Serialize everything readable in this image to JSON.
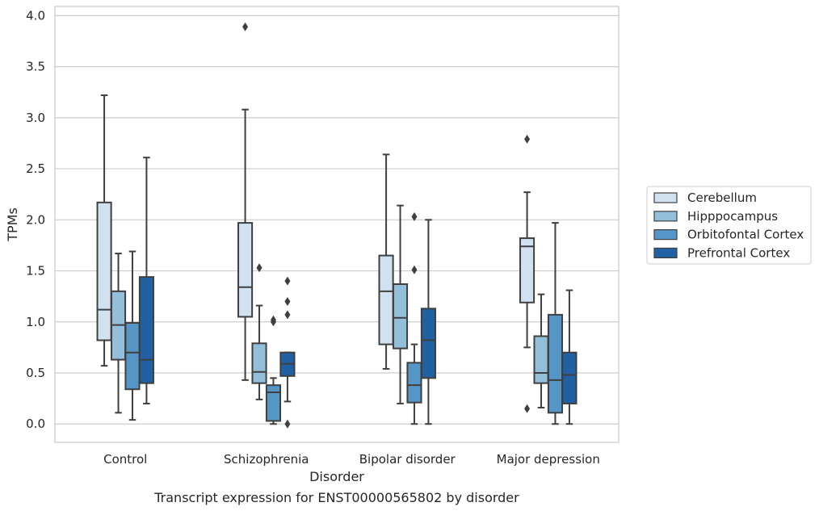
{
  "chart_data": {
    "type": "box",
    "caption": "Transcript expression for ENST00000565802 by disorder",
    "xlabel": "Disorder",
    "ylabel": "TPMs",
    "ylim": [
      -0.18,
      4.09
    ],
    "yticks": [
      "0.0",
      "0.5",
      "1.0",
      "1.5",
      "2.0",
      "2.5",
      "3.0",
      "3.5",
      "4.0"
    ],
    "categories": [
      "Control",
      "Schizophrenia",
      "Bipolar disorder",
      "Major depression"
    ],
    "grid": true,
    "legend_position": "right",
    "series": [
      {
        "name": "Cerebellum",
        "color": "#d1e1f0",
        "boxes": [
          {
            "whislo": 0.57,
            "q1": 0.82,
            "med": 1.12,
            "q3": 2.17,
            "whishi": 3.22,
            "fliers": []
          },
          {
            "whislo": 0.43,
            "q1": 1.05,
            "med": 1.34,
            "q3": 1.97,
            "whishi": 3.08,
            "fliers": [
              3.89
            ]
          },
          {
            "whislo": 0.54,
            "q1": 0.78,
            "med": 1.3,
            "q3": 1.65,
            "whishi": 2.64,
            "fliers": []
          },
          {
            "whislo": 0.75,
            "q1": 1.19,
            "med": 1.74,
            "q3": 1.82,
            "whishi": 2.27,
            "fliers": [
              2.79,
              0.15
            ]
          }
        ]
      },
      {
        "name": "Hipppocampus",
        "color": "#94bfdb",
        "boxes": [
          {
            "whislo": 0.11,
            "q1": 0.63,
            "med": 0.97,
            "q3": 1.3,
            "whishi": 1.67,
            "fliers": []
          },
          {
            "whislo": 0.24,
            "q1": 0.4,
            "med": 0.51,
            "q3": 0.79,
            "whishi": 1.16,
            "fliers": [
              1.53
            ]
          },
          {
            "whislo": 0.2,
            "q1": 0.74,
            "med": 1.04,
            "q3": 1.37,
            "whishi": 2.14,
            "fliers": []
          },
          {
            "whislo": 0.16,
            "q1": 0.4,
            "med": 0.5,
            "q3": 0.86,
            "whishi": 1.27,
            "fliers": []
          }
        ]
      },
      {
        "name": "Orbitofontal Cortex",
        "color": "#5696c7",
        "boxes": [
          {
            "whislo": 0.04,
            "q1": 0.34,
            "med": 0.7,
            "q3": 0.99,
            "whishi": 1.69,
            "fliers": []
          },
          {
            "whislo": 0.0,
            "q1": 0.03,
            "med": 0.31,
            "q3": 0.38,
            "whishi": 0.45,
            "fliers": [
              1.0,
              1.02
            ]
          },
          {
            "whislo": 0.0,
            "q1": 0.21,
            "med": 0.38,
            "q3": 0.6,
            "whishi": 0.78,
            "fliers": [
              1.51,
              2.03
            ]
          },
          {
            "whislo": 0.0,
            "q1": 0.11,
            "med": 0.43,
            "q3": 1.07,
            "whishi": 1.97,
            "fliers": []
          }
        ]
      },
      {
        "name": "Prefrontal Cortex",
        "color": "#2060a3",
        "boxes": [
          {
            "whislo": 0.2,
            "q1": 0.4,
            "med": 0.63,
            "q3": 1.44,
            "whishi": 2.61,
            "fliers": []
          },
          {
            "whislo": 0.22,
            "q1": 0.47,
            "med": 0.59,
            "q3": 0.7,
            "whishi": 0.7,
            "fliers": [
              1.07,
              1.2,
              1.4,
              0.0
            ]
          },
          {
            "whislo": 0.0,
            "q1": 0.45,
            "med": 0.82,
            "q3": 1.13,
            "whishi": 2.0,
            "fliers": []
          },
          {
            "whislo": 0.0,
            "q1": 0.2,
            "med": 0.48,
            "q3": 0.7,
            "whishi": 1.31,
            "fliers": []
          }
        ]
      }
    ]
  }
}
